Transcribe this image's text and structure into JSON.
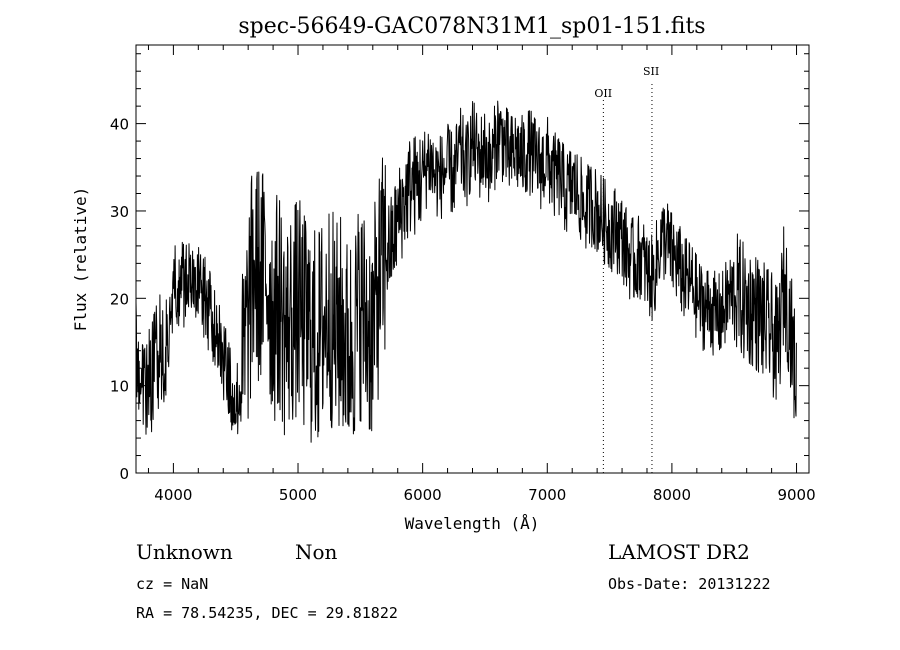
{
  "chart_data": {
    "type": "line",
    "title": "spec-56649-GAC078N31M1_sp01-151.fits",
    "xlabel": "Wavelength (Å)",
    "ylabel": "Flux (relative)",
    "xlim": [
      3700,
      9100
    ],
    "ylim": [
      0,
      49
    ],
    "xticks": [
      4000,
      5000,
      6000,
      7000,
      8000,
      9000
    ],
    "yticks": [
      0,
      10,
      20,
      30,
      40
    ],
    "grid": false,
    "series": [
      {
        "x": [
          3700,
          3750,
          3800,
          3850,
          3900,
          3950,
          4000,
          4050,
          4100,
          4150,
          4200,
          4250,
          4300,
          4350,
          4400,
          4450,
          4500,
          4550,
          4600,
          4650,
          4700,
          4750,
          4800,
          4850,
          4900,
          4950,
          5000,
          5050,
          5100,
          5150,
          5200,
          5250,
          5300,
          5350,
          5400,
          5450,
          5500,
          5550,
          5600,
          5650,
          5700,
          5750,
          5800,
          5850,
          5900,
          5950,
          6000,
          6050,
          6100,
          6150,
          6200,
          6250,
          6300,
          6350,
          6400,
          6450,
          6500,
          6550,
          6600,
          6650,
          6700,
          6750,
          6800,
          6850,
          6900,
          6950,
          7000,
          7050,
          7100,
          7150,
          7200,
          7250,
          7300,
          7350,
          7400,
          7450,
          7500,
          7550,
          7600,
          7650,
          7700,
          7750,
          7800,
          7850,
          7900,
          7950,
          8000,
          8050,
          8100,
          8150,
          8200,
          8250,
          8300,
          8350,
          8400,
          8450,
          8500,
          8550,
          8600,
          8650,
          8700,
          8750,
          8800,
          8850,
          8900,
          8950,
          9000
        ],
        "y": [
          14,
          12,
          10,
          13,
          15,
          14,
          22,
          21,
          22,
          24,
          21,
          20,
          18,
          17,
          13,
          10,
          8,
          10,
          18,
          24,
          22,
          23,
          18,
          20,
          16,
          18,
          19,
          17,
          16,
          15,
          17,
          19,
          16,
          17,
          14,
          16,
          19,
          17,
          16,
          22,
          25,
          26,
          29,
          31,
          33,
          33,
          34,
          36,
          34,
          34,
          35,
          34,
          37,
          35,
          38,
          36,
          37,
          35,
          39,
          38,
          36,
          37,
          36,
          37,
          36,
          35,
          36,
          34,
          34,
          32,
          33,
          32,
          30,
          31,
          30,
          29,
          28,
          28,
          27,
          25,
          24,
          25,
          23,
          22,
          26,
          27,
          25,
          24,
          22,
          22,
          20,
          19,
          19,
          18,
          18,
          20,
          21,
          20,
          19,
          19,
          18,
          17,
          16,
          14,
          22,
          17,
          10
        ]
      }
    ],
    "annotations": [
      {
        "label": "OII",
        "x": 7450
      },
      {
        "label": "SII",
        "x": 7840
      }
    ]
  },
  "info": {
    "object_class": "Unknown",
    "object_subclass": "Non",
    "survey": "LAMOST DR2",
    "redshift": "cz = NaN",
    "obs_date": "Obs-Date: 20131222",
    "coords": "RA =  78.54235, DEC =  29.81822"
  }
}
